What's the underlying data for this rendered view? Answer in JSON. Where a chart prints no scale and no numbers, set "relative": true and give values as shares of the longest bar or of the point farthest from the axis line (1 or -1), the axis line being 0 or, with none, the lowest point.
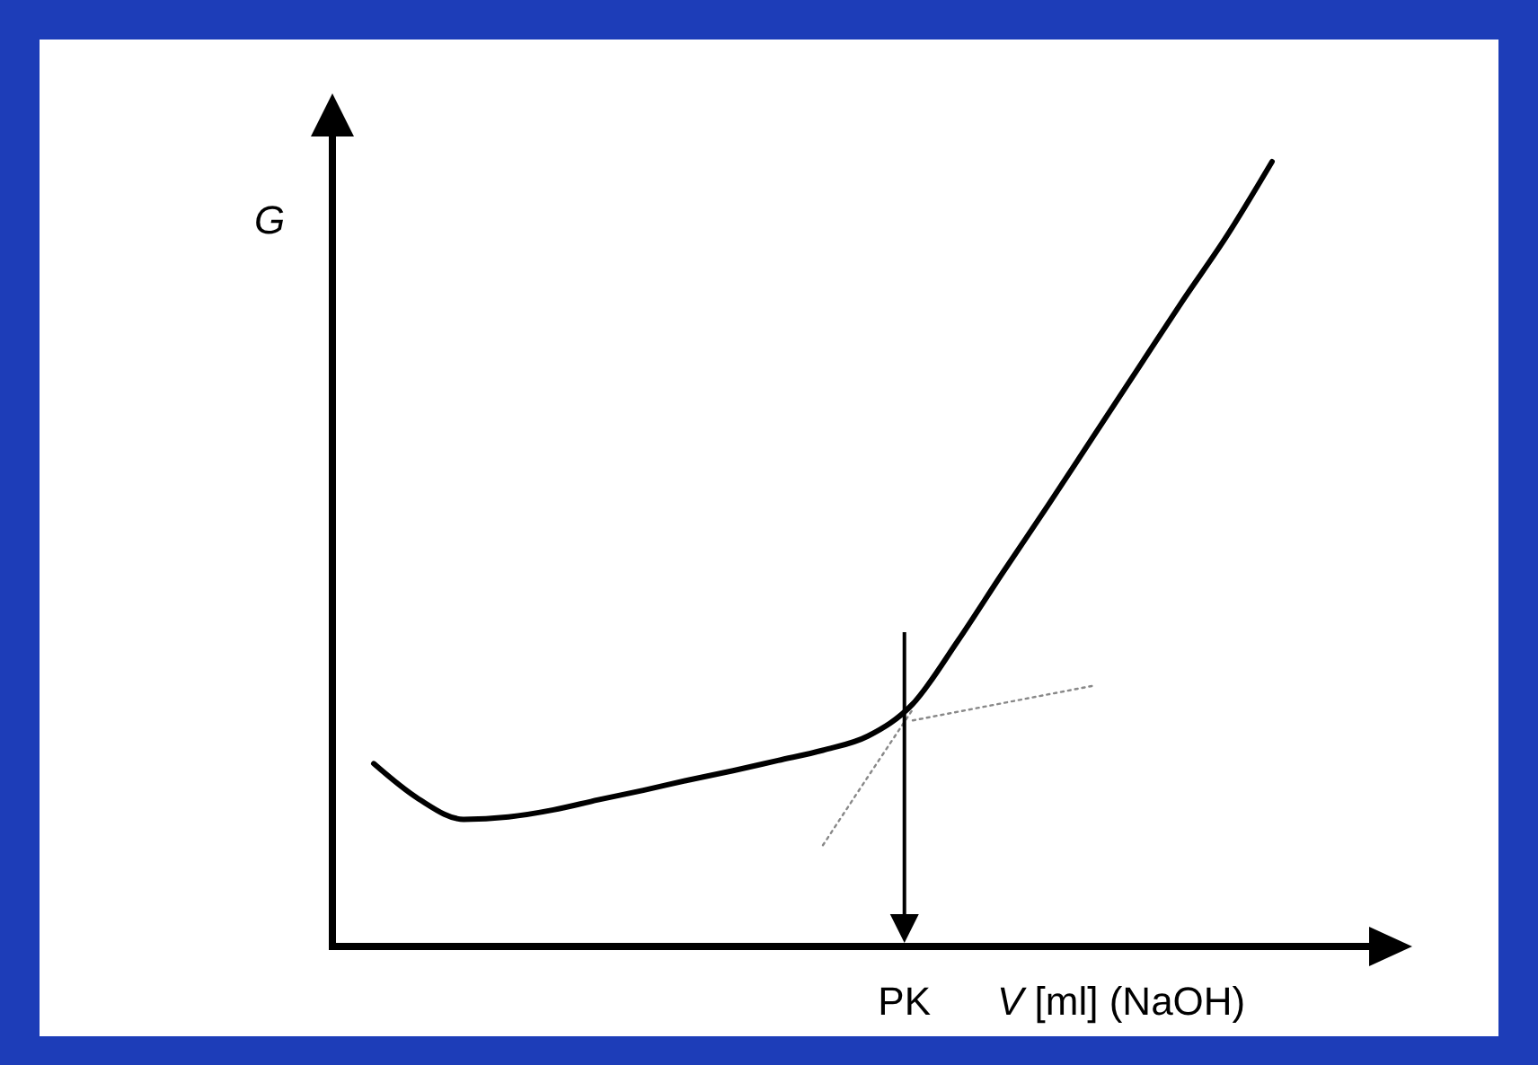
{
  "chart_data": {
    "type": "line",
    "relative": true,
    "xlabel": "V [ml] (NaOH)",
    "ylabel": "G",
    "marker": "none",
    "annotations": [
      "PK"
    ],
    "categories": [
      null,
      null,
      null,
      null,
      null,
      null,
      null,
      null,
      null,
      null,
      null,
      null,
      null,
      null,
      null,
      null,
      null,
      null,
      null,
      null,
      null
    ],
    "series": [
      {
        "color": "#000000",
        "line_style": "solid",
        "values": [
          0.233,
          0.188,
          0.162,
          0.165,
          0.174,
          0.187,
          0.199,
          0.212,
          0.224,
          0.237,
          0.25,
          0.268,
          0.309,
          0.389,
          0.476,
          0.561,
          0.648,
          0.735,
          0.822,
          0.906,
          1
        ]
      },
      {
        "color": "#888888",
        "line_style": "dotted",
        "values": [
          null,
          null,
          null,
          null,
          null,
          null,
          null,
          null,
          null,
          null,
          null,
          null,
          0.288,
          0.299,
          0.31,
          0.321,
          0.332,
          null,
          null,
          null,
          null
        ]
      },
      {
        "color": "#888888",
        "line_style": "dotted",
        "values": [
          null,
          null,
          null,
          null,
          null,
          null,
          null,
          null,
          null,
          null,
          0.129,
          0.216,
          0.302,
          null,
          null,
          null,
          null,
          null,
          null,
          null,
          null
        ]
      }
    ]
  }
}
